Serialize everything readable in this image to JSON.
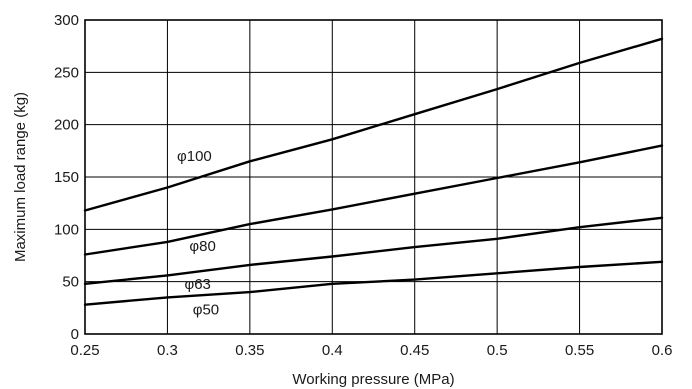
{
  "chart_data": {
    "type": "line",
    "title": "",
    "xlabel": "Working pressure (MPa)",
    "ylabel": "Maximum load range (kg)",
    "xlim": [
      0.25,
      0.6
    ],
    "ylim": [
      0,
      300
    ],
    "xticks": [
      "0.25",
      "0.3",
      "0.35",
      "0.4",
      "0.45",
      "0.5",
      "0.55",
      "0.6"
    ],
    "yticks": [
      "0",
      "50",
      "100",
      "150",
      "200",
      "250",
      "300"
    ],
    "grid": true,
    "series": [
      {
        "name": "φ100",
        "x": [
          0.25,
          0.3,
          0.35,
          0.4,
          0.45,
          0.5,
          0.55,
          0.6
        ],
        "y": [
          118,
          140,
          165,
          186,
          210,
          234,
          259,
          282
        ]
      },
      {
        "name": "φ80",
        "x": [
          0.25,
          0.3,
          0.35,
          0.4,
          0.45,
          0.5,
          0.55,
          0.6
        ],
        "y": [
          76,
          88,
          105,
          119,
          134,
          149,
          164,
          180
        ]
      },
      {
        "name": "φ63",
        "x": [
          0.25,
          0.3,
          0.35,
          0.4,
          0.45,
          0.5,
          0.55,
          0.6
        ],
        "y": [
          48,
          56,
          66,
          74,
          83,
          91,
          102,
          111
        ]
      },
      {
        "name": "φ50",
        "x": [
          0.25,
          0.3,
          0.35,
          0.4,
          0.45,
          0.5,
          0.55,
          0.6
        ],
        "y": [
          28,
          35,
          40,
          48,
          52,
          58,
          64,
          69
        ]
      }
    ]
  }
}
